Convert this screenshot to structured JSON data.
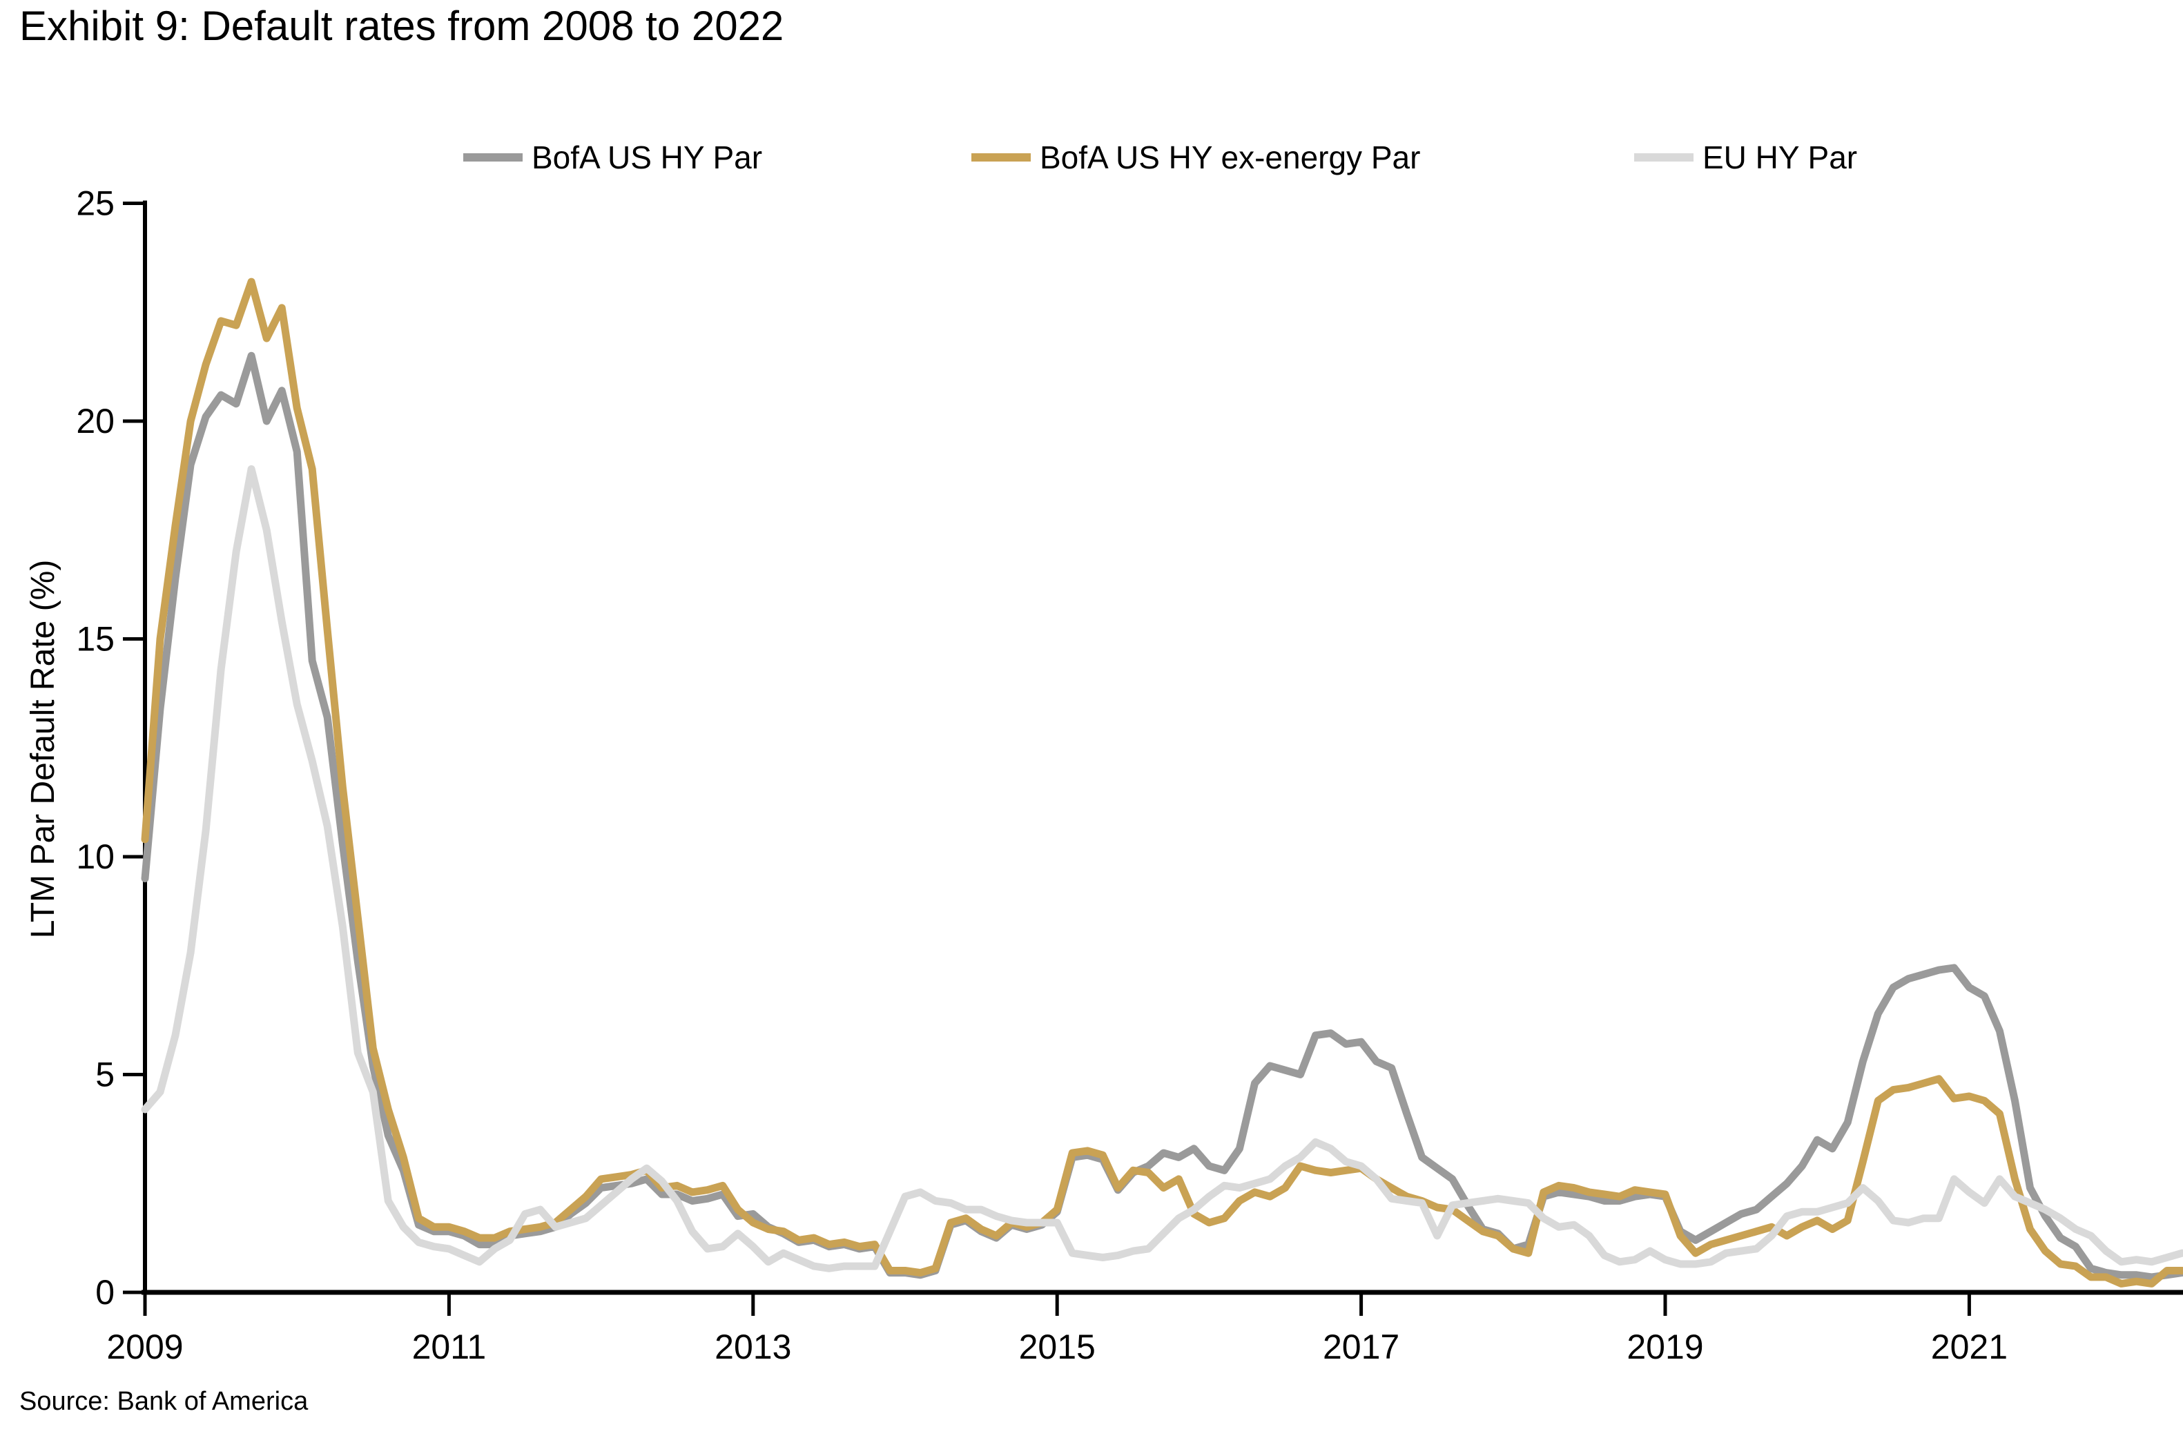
{
  "title": "Exhibit 9: Default rates from 2008 to 2022",
  "source": "Source: Bank of America",
  "chart_data": {
    "type": "line",
    "title": "Exhibit 9: Default rates from 2008 to 2022",
    "xlabel": "",
    "ylabel": "LTM Par Default Rate (%)",
    "ylim": [
      0,
      25
    ],
    "yticks": [
      0,
      5,
      10,
      15,
      20,
      25
    ],
    "xticks": [
      2009,
      2011,
      2013,
      2015,
      2017,
      2019,
      2021
    ],
    "xlim": [
      2009.0,
      2022.4
    ],
    "x_start": 2009.0,
    "x_step": 0.1,
    "grid": false,
    "legend_position": "top",
    "background_color": "#ffffff",
    "axis_color": "#000000",
    "series": [
      {
        "name": "BofA US HY Par",
        "color": "#9A9A9A",
        "values": [
          9.5,
          13.4,
          16.4,
          19.0,
          20.1,
          20.6,
          20.4,
          21.5,
          20.0,
          20.7,
          19.3,
          14.5,
          13.2,
          10.3,
          7.6,
          5.2,
          3.6,
          2.8,
          1.55,
          1.4,
          1.4,
          1.3,
          1.1,
          1.1,
          1.3,
          1.35,
          1.4,
          1.5,
          1.8,
          2.05,
          2.4,
          2.45,
          2.5,
          2.6,
          2.25,
          2.25,
          2.1,
          2.15,
          2.25,
          1.75,
          1.8,
          1.5,
          1.35,
          1.15,
          1.2,
          1.05,
          1.1,
          1.0,
          1.05,
          0.45,
          0.45,
          0.4,
          0.5,
          1.55,
          1.65,
          1.4,
          1.25,
          1.55,
          1.45,
          1.55,
          1.85,
          3.1,
          3.15,
          3.05,
          2.35,
          2.75,
          2.9,
          3.2,
          3.1,
          3.3,
          2.9,
          2.8,
          3.3,
          4.8,
          5.2,
          5.1,
          5.0,
          5.9,
          5.95,
          5.7,
          5.75,
          5.3,
          5.15,
          4.1,
          3.1,
          2.85,
          2.6,
          2.0,
          1.45,
          1.35,
          1.0,
          1.1,
          2.2,
          2.3,
          2.25,
          2.2,
          2.1,
          2.1,
          2.2,
          2.25,
          2.2,
          1.4,
          1.2,
          1.4,
          1.6,
          1.8,
          1.9,
          2.2,
          2.5,
          2.9,
          3.5,
          3.3,
          3.9,
          5.3,
          6.4,
          7.0,
          7.2,
          7.3,
          7.4,
          7.45,
          7.0,
          6.8,
          6.0,
          4.4,
          2.4,
          1.75,
          1.25,
          1.05,
          0.55,
          0.45,
          0.4,
          0.4,
          0.35,
          0.4,
          0.45
        ]
      },
      {
        "name": "BofA US HY ex-energy Par",
        "color": "#C9A254",
        "values": [
          10.4,
          15.0,
          17.6,
          20.0,
          21.3,
          22.3,
          22.2,
          23.2,
          21.9,
          22.6,
          20.3,
          18.9,
          15.2,
          11.6,
          8.6,
          5.6,
          4.2,
          3.1,
          1.7,
          1.5,
          1.5,
          1.4,
          1.25,
          1.25,
          1.4,
          1.45,
          1.5,
          1.6,
          1.9,
          2.2,
          2.6,
          2.65,
          2.7,
          2.8,
          2.4,
          2.45,
          2.3,
          2.35,
          2.45,
          1.9,
          1.6,
          1.45,
          1.4,
          1.2,
          1.25,
          1.1,
          1.15,
          1.05,
          1.1,
          0.5,
          0.5,
          0.45,
          0.55,
          1.6,
          1.7,
          1.45,
          1.3,
          1.6,
          1.5,
          1.6,
          1.9,
          3.2,
          3.25,
          3.15,
          2.4,
          2.8,
          2.75,
          2.4,
          2.6,
          1.8,
          1.6,
          1.7,
          2.1,
          2.3,
          2.2,
          2.4,
          2.9,
          2.8,
          2.75,
          2.8,
          2.85,
          2.6,
          2.4,
          2.2,
          2.1,
          1.95,
          1.9,
          1.65,
          1.4,
          1.3,
          1.0,
          0.9,
          2.3,
          2.45,
          2.4,
          2.3,
          2.25,
          2.2,
          2.35,
          2.3,
          2.25,
          1.3,
          0.9,
          1.1,
          1.2,
          1.3,
          1.4,
          1.5,
          1.3,
          1.5,
          1.65,
          1.45,
          1.65,
          3.0,
          4.4,
          4.65,
          4.7,
          4.8,
          4.9,
          4.45,
          4.5,
          4.4,
          4.1,
          2.6,
          1.45,
          0.95,
          0.65,
          0.6,
          0.35,
          0.35,
          0.2,
          0.25,
          0.2,
          0.5,
          0.5
        ]
      },
      {
        "name": "EU HY Par",
        "color": "#D9D9D9",
        "values": [
          4.2,
          4.6,
          5.9,
          7.8,
          10.6,
          14.3,
          17.0,
          18.9,
          17.5,
          15.4,
          13.5,
          12.2,
          10.7,
          8.4,
          5.5,
          4.6,
          2.1,
          1.5,
          1.15,
          1.05,
          1.0,
          0.85,
          0.7,
          1.0,
          1.2,
          1.8,
          1.9,
          1.5,
          1.6,
          1.7,
          2.0,
          2.3,
          2.6,
          2.85,
          2.55,
          2.1,
          1.4,
          1.0,
          1.05,
          1.35,
          1.05,
          0.7,
          0.9,
          0.75,
          0.6,
          0.55,
          0.6,
          0.6,
          0.6,
          1.4,
          2.2,
          2.3,
          2.1,
          2.05,
          1.9,
          1.9,
          1.75,
          1.65,
          1.6,
          1.6,
          1.6,
          0.9,
          0.85,
          0.8,
          0.85,
          0.95,
          1.0,
          1.35,
          1.7,
          1.9,
          2.2,
          2.45,
          2.4,
          2.5,
          2.6,
          2.9,
          3.1,
          3.45,
          3.3,
          3.0,
          2.9,
          2.6,
          2.15,
          2.1,
          2.05,
          1.3,
          2.0,
          2.05,
          2.1,
          2.15,
          2.1,
          2.05,
          1.7,
          1.5,
          1.55,
          1.3,
          0.85,
          0.7,
          0.75,
          0.95,
          0.75,
          0.65,
          0.65,
          0.7,
          0.9,
          0.95,
          1.0,
          1.3,
          1.75,
          1.85,
          1.85,
          1.95,
          2.05,
          2.4,
          2.1,
          1.65,
          1.6,
          1.7,
          1.7,
          2.6,
          2.3,
          2.05,
          2.6,
          2.2,
          2.05,
          1.9,
          1.7,
          1.45,
          1.3,
          0.95,
          0.7,
          0.75,
          0.7,
          0.8,
          0.9
        ]
      }
    ]
  }
}
